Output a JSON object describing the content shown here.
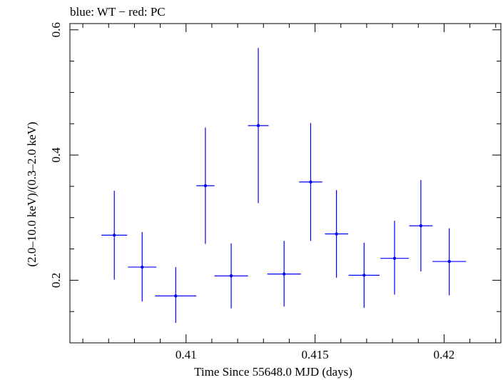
{
  "chart_data": {
    "type": "scatter",
    "title": "blue: WT − red: PC",
    "xlabel": "Time Since 55648.0 MJD (days)",
    "ylabel": "(2.0–10.0 keV)/(0.3–2.0 keV)",
    "xlim": [
      0.4055,
      0.4222
    ],
    "ylim": [
      0.1,
      0.61
    ],
    "x_ticks": [
      0.41,
      0.415,
      0.42
    ],
    "x_tick_labels": [
      "0.41",
      "0.415",
      "0.42"
    ],
    "y_ticks": [
      0.2,
      0.4,
      0.6
    ],
    "y_tick_labels": [
      "0.2",
      "0.4",
      "0.6"
    ],
    "grid": false,
    "series": [
      {
        "color": "#0000ff",
        "points": [
          {
            "x": 0.40722,
            "y": 0.272,
            "xerr": 0.0005,
            "ylo": 0.201,
            "yhi": 0.343
          },
          {
            "x": 0.4083,
            "y": 0.221,
            "xerr": 0.00055,
            "ylo": 0.166,
            "yhi": 0.277
          },
          {
            "x": 0.4096,
            "y": 0.175,
            "xerr": 0.0008,
            "ylo": 0.132,
            "yhi": 0.221
          },
          {
            "x": 0.41075,
            "y": 0.351,
            "xerr": 0.00035,
            "ylo": 0.258,
            "yhi": 0.444
          },
          {
            "x": 0.41175,
            "y": 0.207,
            "xerr": 0.00065,
            "ylo": 0.155,
            "yhi": 0.259
          },
          {
            "x": 0.4128,
            "y": 0.447,
            "xerr": 0.0004,
            "ylo": 0.323,
            "yhi": 0.571
          },
          {
            "x": 0.4138,
            "y": 0.21,
            "xerr": 0.00065,
            "ylo": 0.158,
            "yhi": 0.263
          },
          {
            "x": 0.41483,
            "y": 0.357,
            "xerr": 0.00045,
            "ylo": 0.263,
            "yhi": 0.451
          },
          {
            "x": 0.41583,
            "y": 0.274,
            "xerr": 0.00045,
            "ylo": 0.204,
            "yhi": 0.344
          },
          {
            "x": 0.4169,
            "y": 0.208,
            "xerr": 0.0006,
            "ylo": 0.156,
            "yhi": 0.26
          },
          {
            "x": 0.41808,
            "y": 0.235,
            "xerr": 0.00055,
            "ylo": 0.177,
            "yhi": 0.295
          },
          {
            "x": 0.4191,
            "y": 0.287,
            "xerr": 0.00045,
            "ylo": 0.214,
            "yhi": 0.36
          },
          {
            "x": 0.4202,
            "y": 0.23,
            "xerr": 0.00065,
            "ylo": 0.176,
            "yhi": 0.283
          }
        ]
      }
    ]
  }
}
